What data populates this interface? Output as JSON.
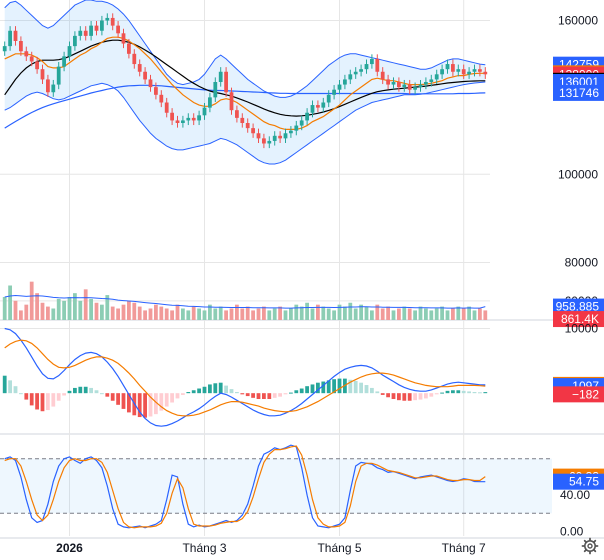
{
  "chart_data": {
    "type": "candlestick",
    "time_axis_labels": [
      "2026",
      "Tháng 3",
      "Tháng 5",
      "Tháng 7"
    ],
    "price_pane": {
      "ylim": [
        88000,
        168000
      ],
      "ticks": [
        {
          "value": 160000,
          "label": "160000"
        },
        {
          "value": 100000,
          "label": "100000"
        }
      ],
      "badges": [
        {
          "value": 142759,
          "label": "142759",
          "color": "#2962ff"
        },
        {
          "value": 139380,
          "label": "139380",
          "color": "#f57c00"
        },
        {
          "value": 138900,
          "label": "138900",
          "color": "#f23645"
        },
        {
          "value": 136475,
          "label": "136475",
          "color": "#000000"
        },
        {
          "value": 136001,
          "label": "136001",
          "color": "#2962ff"
        },
        {
          "value": 131746,
          "label": "131746",
          "color": "#2962ff"
        }
      ],
      "closes": [
        150000,
        156000,
        152000,
        148000,
        146000,
        144000,
        141000,
        137000,
        132000,
        135000,
        142000,
        146000,
        150000,
        154000,
        156000,
        154000,
        158000,
        156000,
        160000,
        161000,
        158000,
        155000,
        151000,
        147000,
        143000,
        140000,
        137000,
        134000,
        131000,
        128000,
        124000,
        121000,
        120000,
        121000,
        122000,
        121000,
        123000,
        126000,
        130000,
        136000,
        140000,
        132000,
        125000,
        122000,
        120000,
        118000,
        116000,
        114000,
        112000,
        113000,
        115000,
        114000,
        116000,
        117000,
        119000,
        121000,
        124000,
        127000,
        126000,
        128000,
        131000,
        133000,
        135000,
        137000,
        139000,
        140000,
        141000,
        143000,
        145000,
        140000,
        137000,
        135000,
        136000,
        134000,
        135000,
        133000,
        134000,
        135000,
        136000,
        137000,
        139000,
        141000,
        143000,
        140000,
        141000,
        139000,
        140000,
        141000,
        140000,
        139000
      ],
      "ema_fast": [
        145000,
        146000,
        147000,
        147000,
        147000,
        146500,
        145500,
        144000,
        142000,
        141500,
        141500,
        142000,
        143500,
        145000,
        146500,
        147500,
        149000,
        150000,
        151500,
        153000,
        153500,
        153500,
        153000,
        152000,
        150500,
        149000,
        147000,
        145000,
        142500,
        140000,
        137500,
        135000,
        133000,
        131000,
        129500,
        128000,
        127000,
        126500,
        126500,
        127500,
        129000,
        129500,
        129000,
        128000,
        126500,
        125000,
        123500,
        122000,
        120500,
        119500,
        119000,
        118000,
        117500,
        117500,
        117500,
        118000,
        119000,
        120500,
        121500,
        122500,
        124000,
        125500,
        127000,
        129000,
        131000,
        132500,
        134000,
        135500,
        137000,
        137500,
        137000,
        136500,
        136500,
        136000,
        135500,
        135000,
        135000,
        135000,
        135200,
        135500,
        136000,
        136500,
        137500,
        138000,
        138500,
        138500,
        139000,
        139300,
        139400,
        139380
      ],
      "ema_mid": [
        131000,
        134000,
        137000,
        139500,
        141500,
        143000,
        144000,
        144500,
        144500,
        144500,
        144700,
        145200,
        146000,
        147000,
        148000,
        149000,
        150000,
        150800,
        151500,
        152000,
        152300,
        152300,
        152000,
        151500,
        150700,
        149700,
        148500,
        147200,
        145800,
        144300,
        142800,
        141300,
        139800,
        138300,
        136800,
        135500,
        134300,
        133300,
        132500,
        131900,
        131500,
        131000,
        130500,
        129800,
        129000,
        128200,
        127300,
        126400,
        125500,
        124700,
        124000,
        123400,
        123000,
        122800,
        122700,
        122800,
        123000,
        123400,
        123800,
        124300,
        124900,
        125600,
        126400,
        127300,
        128200,
        129100,
        130000,
        130800,
        131600,
        132200,
        132600,
        132900,
        133200,
        133400,
        133600,
        133800,
        134000,
        134200,
        134400,
        134700,
        135000,
        135300,
        135600,
        135800,
        136000,
        136200,
        136300,
        136400,
        136450,
        136475
      ],
      "ema_slow": [
        118000,
        119300,
        120600,
        121800,
        123000,
        124100,
        125100,
        126000,
        126800,
        127500,
        128100,
        128700,
        129300,
        129900,
        130500,
        131100,
        131700,
        132200,
        132700,
        133200,
        133600,
        134000,
        134300,
        134500,
        134600,
        134700,
        134700,
        134700,
        134600,
        134500,
        134300,
        134100,
        133900,
        133700,
        133500,
        133300,
        133100,
        132900,
        132800,
        132700,
        132700,
        132600,
        132500,
        132400,
        132300,
        132200,
        132100,
        132000,
        131900,
        131800,
        131700,
        131600,
        131600,
        131500,
        131500,
        131500,
        131500,
        131500,
        131500,
        131500,
        131500,
        131500,
        131500,
        131500,
        131500,
        131500,
        131500,
        131500,
        131500,
        131500,
        131500,
        131500,
        131500,
        131500,
        131500,
        131400,
        131400,
        131400,
        131400,
        131400,
        131400,
        131400,
        131400,
        131400,
        131500,
        131500,
        131500,
        131600,
        131700,
        131746
      ],
      "bb_upper": [
        165000,
        167000,
        167500,
        166000,
        164000,
        162000,
        160000,
        158000,
        157000,
        158000,
        160000,
        162000,
        164000,
        166000,
        167000,
        168000,
        168000,
        167500,
        167500,
        167000,
        166000,
        164500,
        162500,
        160000,
        157000,
        154000,
        151000,
        148000,
        145000,
        142000,
        139000,
        137000,
        135500,
        135000,
        135500,
        136000,
        137000,
        139000,
        142000,
        145000,
        146500,
        145000,
        143000,
        141000,
        139000,
        137000,
        135500,
        134000,
        132500,
        131500,
        130500,
        130000,
        130000,
        130500,
        131500,
        133000,
        134500,
        136500,
        138500,
        140500,
        142500,
        144000,
        145500,
        146500,
        147000,
        147000,
        146500,
        146000,
        145500,
        145000,
        144500,
        144000,
        143500,
        143000,
        142500,
        142000,
        141500,
        141000,
        141000,
        141500,
        142500,
        143500,
        144500,
        145000,
        145000,
        144500,
        144000,
        143500,
        143000,
        142759
      ],
      "bb_lower": [
        125000,
        126000,
        127500,
        129000,
        130500,
        131500,
        132000,
        131500,
        130500,
        129500,
        129000,
        129500,
        130500,
        131500,
        132500,
        133500,
        134500,
        135000,
        135500,
        135000,
        134000,
        132500,
        130000,
        127000,
        124000,
        121000,
        118500,
        116000,
        114000,
        112500,
        111000,
        110000,
        109500,
        109500,
        110000,
        110500,
        111000,
        111500,
        112000,
        113000,
        114000,
        113500,
        112500,
        111500,
        110000,
        108500,
        107000,
        105500,
        104500,
        104000,
        104000,
        104500,
        105500,
        107000,
        108500,
        110000,
        111500,
        113000,
        114500,
        116000,
        117500,
        119000,
        120500,
        122000,
        123500,
        125000,
        126000,
        127000,
        128000,
        128500,
        129000,
        129500,
        130000,
        130500,
        131000,
        131000,
        131000,
        131200,
        131500,
        132000,
        132500,
        133000,
        133500,
        134000,
        134500,
        135000,
        135300,
        135600,
        135800,
        136001
      ]
    },
    "volume_pane": {
      "ylim": [
        50000,
        110000
      ],
      "ticks": [
        {
          "value": 80000,
          "label": "80000"
        },
        {
          "value": 60000,
          "label": "60000"
        }
      ],
      "badges": [
        {
          "value": 57000,
          "label": "958.885",
          "color": "#2962ff"
        },
        {
          "value": 50500,
          "label": "861.4K",
          "color": "#f23645"
        }
      ],
      "volumes": [
        62000,
        68000,
        60000,
        55000,
        58000,
        70000,
        64000,
        59000,
        57000,
        56000,
        61000,
        60000,
        62000,
        64000,
        60000,
        66000,
        61000,
        59000,
        58000,
        63000,
        57000,
        56000,
        58000,
        60000,
        59000,
        57000,
        55000,
        56000,
        58000,
        57000,
        56000,
        55000,
        58000,
        56000,
        55000,
        57000,
        56000,
        55000,
        58000,
        56000,
        57000,
        55000,
        56000,
        58000,
        56000,
        57000,
        55000,
        56000,
        57000,
        55000,
        56000,
        57000,
        55000,
        56000,
        58000,
        57000,
        59000,
        56000,
        58000,
        57000,
        56000,
        55000,
        58000,
        57000,
        59000,
        56000,
        58000,
        57000,
        55000,
        58000,
        56000,
        57000,
        55000,
        56000,
        57000,
        56000,
        55000,
        57000,
        56000,
        55000,
        56000,
        57000,
        55000,
        56000,
        57000,
        56000,
        57000,
        55000,
        56000,
        55000
      ],
      "ma": [
        62000,
        62500,
        62800,
        62600,
        62300,
        62500,
        62700,
        62500,
        62200,
        61800,
        61600,
        61500,
        61600,
        61700,
        61600,
        61700,
        61600,
        61400,
        61200,
        61100,
        60800,
        60400,
        60100,
        59900,
        59700,
        59400,
        59100,
        58800,
        58600,
        58300,
        58000,
        57700,
        57600,
        57400,
        57200,
        57100,
        57000,
        56800,
        56800,
        56700,
        56700,
        56600,
        56500,
        56500,
        56500,
        56500,
        56400,
        56400,
        56400,
        56300,
        56300,
        56300,
        56200,
        56200,
        56300,
        56400,
        56500,
        56500,
        56600,
        56600,
        56600,
        56500,
        56600,
        56700,
        56800,
        56800,
        56900,
        56900,
        56800,
        56800,
        56700,
        56700,
        56600,
        56600,
        56600,
        56500,
        56400,
        56400,
        56400,
        56300,
        56300,
        56300,
        56200,
        56200,
        56300,
        56200,
        56300,
        56200,
        56200,
        57000
      ]
    },
    "macd_pane": {
      "ylim": [
        -6000,
        11000
      ],
      "ticks": [
        {
          "value": 10000,
          "label": "10000"
        }
      ],
      "badges": [
        {
          "value": 1279,
          "label": "1279",
          "color": "#f57c00"
        },
        {
          "value": 1097,
          "label": "1097",
          "color": "#2962ff"
        },
        {
          "value": -182,
          "label": "−182",
          "color": "#f23645"
        }
      ],
      "macd": [
        10000,
        9800,
        9200,
        8200,
        7000,
        5600,
        4200,
        3000,
        2300,
        2200,
        2700,
        3500,
        4400,
        5200,
        5800,
        6200,
        6300,
        6100,
        5600,
        4800,
        3800,
        2600,
        1200,
        -200,
        -1600,
        -2900,
        -3900,
        -4600,
        -5000,
        -5100,
        -5000,
        -4700,
        -4300,
        -3800,
        -3300,
        -2900,
        -2400,
        -1800,
        -1100,
        -500,
        0,
        -200,
        -600,
        -1100,
        -1600,
        -2100,
        -2600,
        -3000,
        -3300,
        -3500,
        -3500,
        -3400,
        -3100,
        -2700,
        -2200,
        -1600,
        -900,
        -200,
        500,
        1200,
        1900,
        2600,
        3200,
        3700,
        4000,
        4200,
        4300,
        4200,
        3900,
        3400,
        2800,
        2300,
        1800,
        1300,
        900,
        600,
        400,
        300,
        300,
        500,
        800,
        1100,
        1400,
        1600,
        1700,
        1600,
        1500,
        1400,
        1300,
        1279
      ],
      "signal": [
        7000,
        7600,
        8000,
        8200,
        8100,
        7700,
        7000,
        6100,
        5200,
        4500,
        4000,
        3900,
        4000,
        4300,
        4700,
        5100,
        5400,
        5600,
        5600,
        5400,
        5100,
        4600,
        3900,
        3100,
        2200,
        1200,
        300,
        -600,
        -1400,
        -2100,
        -2700,
        -3100,
        -3400,
        -3500,
        -3500,
        -3400,
        -3200,
        -2900,
        -2600,
        -2200,
        -1800,
        -1500,
        -1300,
        -1300,
        -1400,
        -1600,
        -1800,
        -2000,
        -2300,
        -2500,
        -2700,
        -2800,
        -2900,
        -2800,
        -2700,
        -2400,
        -2100,
        -1700,
        -1300,
        -800,
        -300,
        200,
        700,
        1200,
        1700,
        2100,
        2500,
        2800,
        3000,
        3100,
        3100,
        3000,
        2800,
        2500,
        2200,
        1900,
        1600,
        1400,
        1200,
        1100,
        1000,
        1000,
        1000,
        1100,
        1200,
        1200,
        1200,
        1200,
        1150,
        1097
      ]
    },
    "stoch_pane": {
      "ylim": [
        -5,
        105
      ],
      "band": [
        20,
        80
      ],
      "ticks": [
        {
          "value": 40,
          "label": "40.00"
        },
        {
          "value": 0,
          "label": "0.00"
        }
      ],
      "badges": [
        {
          "value": 60.33,
          "label": "60.33",
          "color": "#f57c00"
        },
        {
          "value": 54.75,
          "label": "54.75",
          "color": "#2962ff"
        }
      ],
      "k": [
        80,
        82,
        78,
        60,
        35,
        15,
        10,
        12,
        30,
        55,
        72,
        80,
        82,
        78,
        75,
        80,
        82,
        78,
        70,
        50,
        25,
        8,
        5,
        4,
        5,
        6,
        4,
        6,
        8,
        12,
        35,
        62,
        60,
        30,
        8,
        5,
        7,
        5,
        6,
        8,
        10,
        12,
        10,
        12,
        18,
        30,
        50,
        72,
        85,
        88,
        92,
        90,
        92,
        95,
        93,
        70,
        40,
        15,
        6,
        5,
        4,
        6,
        8,
        15,
        45,
        72,
        76,
        75,
        74,
        70,
        68,
        65,
        66,
        64,
        62,
        60,
        58,
        60,
        61,
        62,
        60,
        58,
        56,
        55,
        56,
        58,
        57,
        55,
        54.75,
        54.75
      ],
      "d": [
        78,
        80,
        80,
        72,
        55,
        35,
        18,
        12,
        18,
        35,
        55,
        70,
        78,
        80,
        78,
        78,
        80,
        80,
        76,
        65,
        45,
        25,
        10,
        5,
        4,
        5,
        5,
        5,
        6,
        9,
        20,
        42,
        58,
        48,
        25,
        8,
        6,
        6,
        6,
        7,
        9,
        10,
        11,
        11,
        14,
        22,
        38,
        58,
        76,
        85,
        90,
        90,
        91,
        93,
        94,
        84,
        62,
        35,
        15,
        8,
        5,
        5,
        6,
        10,
        28,
        55,
        72,
        75,
        75,
        73,
        70,
        67,
        66,
        65,
        63,
        61,
        59,
        59,
        60,
        61,
        61,
        59,
        57,
        56,
        56,
        57,
        57,
        56,
        56,
        60.33
      ]
    }
  },
  "colors": {
    "up": "#26a69a",
    "down": "#ef5350",
    "grid": "#e6e6e6",
    "ema_fast": "#f57c00",
    "ema_mid": "#000000",
    "ema_slow": "#2962ff",
    "bb": "#2962ff",
    "bb_fill": "#2196f3",
    "vol_ma": "#2962ff",
    "macd": "#2962ff",
    "signal": "#f57c00"
  },
  "icons": {
    "settings": "gear-icon"
  }
}
